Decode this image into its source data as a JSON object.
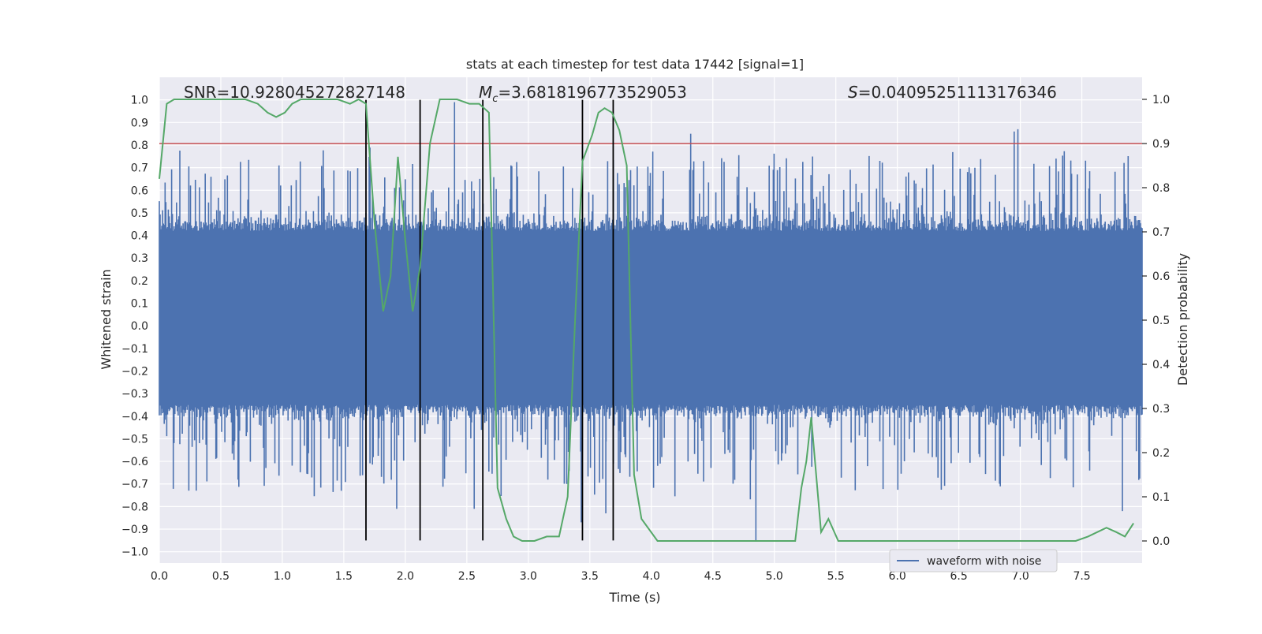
{
  "chart_data": {
    "type": "line",
    "title": "stats at each timestep for test data 17442 [signal=1]",
    "xlabel": "Time (s)",
    "ylabel": "Whitened strain",
    "y2label": "Detection probability",
    "xlim": [
      0.0,
      7.99
    ],
    "ylim": [
      -1.05,
      1.1
    ],
    "y2lim": [
      -0.05,
      1.05
    ],
    "xticks": [
      "0.0",
      "0.5",
      "1.0",
      "1.5",
      "2.0",
      "2.5",
      "3.0",
      "3.5",
      "4.0",
      "4.5",
      "5.0",
      "5.5",
      "6.0",
      "6.5",
      "7.0",
      "7.5"
    ],
    "yticks": [
      "1.0",
      "0.9",
      "0.8",
      "0.7",
      "0.6",
      "0.5",
      "0.4",
      "0.3",
      "0.2",
      "0.1",
      "0.0",
      "-0.1",
      "-0.2",
      "-0.3",
      "-0.4",
      "-0.5",
      "-0.6",
      "-0.7",
      "-0.8",
      "-0.9",
      "-1.0"
    ],
    "y2ticks": [
      "1.0",
      "0.9",
      "0.8",
      "0.7",
      "0.6",
      "0.5",
      "0.4",
      "0.3",
      "0.2",
      "0.1",
      "0.0"
    ],
    "annotations": {
      "snr": "SNR=10.928045272827148",
      "mc_symbol": "M",
      "mc_sub": "c",
      "mc_value": "=3.6818196773529053",
      "s_symbol": "S",
      "s_value": "=0.04095251113176346"
    },
    "legend": {
      "label": "waveform with noise",
      "placement": "lower-right"
    },
    "threshold": {
      "value": 0.9,
      "axis": "y2",
      "color": "#c44e52"
    },
    "vertical_lines": [
      1.68,
      2.12,
      2.63,
      3.44,
      3.69
    ],
    "vertical_line_range": [
      -0.95,
      1.0
    ],
    "waveform": {
      "name": "waveform with noise",
      "color": "#4c72b0",
      "description_free": true,
      "dense_band": [
        -0.35,
        0.42
      ],
      "n_samples": 1200,
      "seed": 17442,
      "spike_peaks": [
        {
          "x": 2.4,
          "y": 0.99
        },
        {
          "x": 6.98,
          "y": 0.87
        },
        {
          "x": 6.95,
          "y": 0.86
        },
        {
          "x": 4.32,
          "y": 0.85
        },
        {
          "x": 4.85,
          "y": -0.95
        },
        {
          "x": 3.43,
          "y": -0.87
        },
        {
          "x": 7.83,
          "y": -0.82
        },
        {
          "x": 1.93,
          "y": -0.81
        },
        {
          "x": 2.56,
          "y": -0.81
        },
        {
          "x": 3.63,
          "y": -0.83
        }
      ]
    },
    "probability": {
      "name": "detection probability",
      "color": "#55a868",
      "x": [
        0.0,
        0.06,
        0.12,
        0.2,
        0.3,
        0.4,
        0.55,
        0.7,
        0.8,
        0.88,
        0.95,
        1.02,
        1.08,
        1.15,
        1.25,
        1.35,
        1.45,
        1.55,
        1.62,
        1.68,
        1.75,
        1.82,
        1.88,
        1.94,
        2.0,
        2.06,
        2.12,
        2.2,
        2.28,
        2.35,
        2.42,
        2.52,
        2.6,
        2.68,
        2.75,
        2.82,
        2.88,
        2.95,
        3.05,
        3.15,
        3.25,
        3.32,
        3.38,
        3.44,
        3.52,
        3.57,
        3.62,
        3.68,
        3.74,
        3.8,
        3.86,
        3.92,
        4.05,
        4.3,
        4.6,
        4.9,
        5.1,
        5.17,
        5.22,
        5.26,
        5.3,
        5.38,
        5.44,
        5.52,
        5.6,
        6.0,
        6.4,
        6.7,
        7.0,
        7.15,
        7.3,
        7.45,
        7.55,
        7.7,
        7.78,
        7.85,
        7.92
      ],
      "y": [
        0.82,
        0.99,
        1.0,
        1.0,
        1.0,
        1.0,
        1.0,
        1.0,
        0.99,
        0.97,
        0.96,
        0.97,
        0.99,
        1.0,
        1.0,
        1.0,
        1.0,
        0.99,
        1.0,
        0.99,
        0.72,
        0.52,
        0.6,
        0.87,
        0.68,
        0.52,
        0.62,
        0.9,
        1.0,
        1.0,
        1.0,
        0.99,
        0.99,
        0.97,
        0.12,
        0.05,
        0.01,
        0.0,
        0.0,
        0.01,
        0.01,
        0.1,
        0.5,
        0.86,
        0.92,
        0.97,
        0.98,
        0.97,
        0.93,
        0.85,
        0.15,
        0.05,
        0.0,
        0.0,
        0.0,
        0.0,
        0.0,
        0.0,
        0.12,
        0.18,
        0.28,
        0.02,
        0.05,
        0.0,
        0.0,
        0.0,
        0.0,
        0.0,
        0.0,
        0.0,
        0.0,
        0.0,
        0.01,
        0.03,
        0.02,
        0.01,
        0.04
      ],
      "note": "probability on right axis"
    }
  }
}
